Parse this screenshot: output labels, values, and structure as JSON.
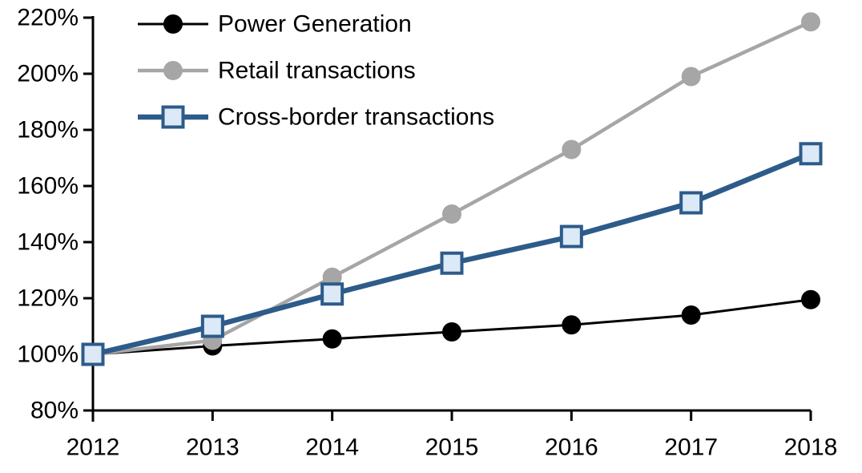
{
  "chart_data": {
    "type": "line",
    "title": "",
    "xlabel": "",
    "ylabel": "",
    "x": [
      2012,
      2013,
      2014,
      2015,
      2016,
      2017,
      2018
    ],
    "x_tick_labels": [
      "2012",
      "2013",
      "2014",
      "2015",
      "2016",
      "2017",
      "2018"
    ],
    "y_ticks": [
      {
        "value": 80,
        "label": "80%"
      },
      {
        "value": 100,
        "label": "100%"
      },
      {
        "value": 120,
        "label": "120%"
      },
      {
        "value": 140,
        "label": "140%"
      },
      {
        "value": 160,
        "label": "160%"
      },
      {
        "value": 180,
        "label": "180%"
      },
      {
        "value": 200,
        "label": "200%"
      },
      {
        "value": 220,
        "label": "220%"
      }
    ],
    "ylim": [
      80,
      220
    ],
    "grid": false,
    "legend_position": "top-left-inside",
    "series": [
      {
        "name": "Power Generation",
        "marker": "circle",
        "color": "#000000",
        "marker_fill": "#000000",
        "line_width": 3,
        "values": [
          100,
          103,
          105.5,
          108,
          110.5,
          114,
          119.5
        ]
      },
      {
        "name": "Retail transactions",
        "marker": "circle",
        "color": "#A6A6A6",
        "marker_fill": "#A6A6A6",
        "line_width": 4.5,
        "values": [
          100,
          105,
          127.5,
          150,
          173,
          199,
          218.5
        ]
      },
      {
        "name": "Cross-border transactions",
        "marker": "square",
        "color": "#2D5B8A",
        "marker_fill": "#DCE9F6",
        "line_width": 6.5,
        "values": [
          100,
          110,
          121.5,
          132.5,
          142,
          154,
          171.5
        ]
      }
    ]
  },
  "colors": {
    "axis": "#000000",
    "text": "#000000",
    "background": "#FFFFFF"
  }
}
